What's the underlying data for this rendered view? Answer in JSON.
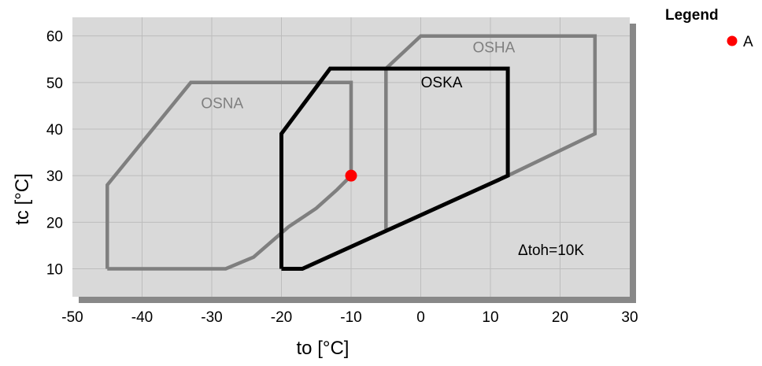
{
  "chart_data": {
    "type": "line",
    "xlabel": "to [°C]",
    "ylabel": "tc [°C]",
    "xlim": [
      -50,
      30
    ],
    "ylim": [
      4,
      64
    ],
    "x_ticks": [
      -50,
      -40,
      -30,
      -20,
      -10,
      0,
      10,
      20,
      30
    ],
    "y_ticks": [
      10,
      20,
      30,
      40,
      50,
      60
    ],
    "x_tick_labels": [
      "-50",
      "-40",
      "-30",
      "-20",
      "-10",
      "0",
      "10",
      "20",
      "30"
    ],
    "y_tick_labels": [
      "10",
      "20",
      "30",
      "40",
      "50",
      "60"
    ],
    "grid": true,
    "annotation": "Δtoh=10K",
    "series": [
      {
        "name": "OSNA",
        "color": "#7f7f7f",
        "points": [
          [
            -45,
            10
          ],
          [
            -45,
            28
          ],
          [
            -33,
            50
          ],
          [
            -10,
            50
          ],
          [
            -10,
            30
          ],
          [
            -12,
            27
          ],
          [
            -15,
            23
          ],
          [
            -19,
            19
          ],
          [
            -24,
            12.5
          ],
          [
            -28,
            10
          ],
          [
            -45,
            10
          ]
        ]
      },
      {
        "name": "OSHA",
        "color": "#7f7f7f",
        "points": [
          [
            -5,
            18.5
          ],
          [
            -5,
            53
          ],
          [
            0,
            60
          ],
          [
            25,
            60
          ],
          [
            25,
            39
          ],
          [
            12.5,
            30
          ]
        ]
      },
      {
        "name": "OSKA",
        "color": "#000000",
        "points": [
          [
            -20,
            10
          ],
          [
            -20,
            39
          ],
          [
            -13,
            53
          ],
          [
            12.5,
            53
          ],
          [
            12.5,
            30
          ],
          [
            -17,
            10
          ],
          [
            -20,
            10
          ]
        ]
      }
    ],
    "region_labels": [
      {
        "text": "OSNA",
        "x": -28.5,
        "y": 44.5,
        "color": "#7f7f7f"
      },
      {
        "text": "OSHA",
        "x": 10.5,
        "y": 56.5,
        "color": "#7f7f7f"
      },
      {
        "text": "OSKA",
        "x": 3,
        "y": 49,
        "color": "#000000"
      }
    ],
    "point": {
      "label": "A",
      "x": -10,
      "y": 30,
      "color": "#ff0000"
    },
    "legend": {
      "title": "Legend",
      "position": "top-right",
      "items": [
        {
          "label": "A",
          "color": "#ff0000"
        }
      ]
    }
  }
}
